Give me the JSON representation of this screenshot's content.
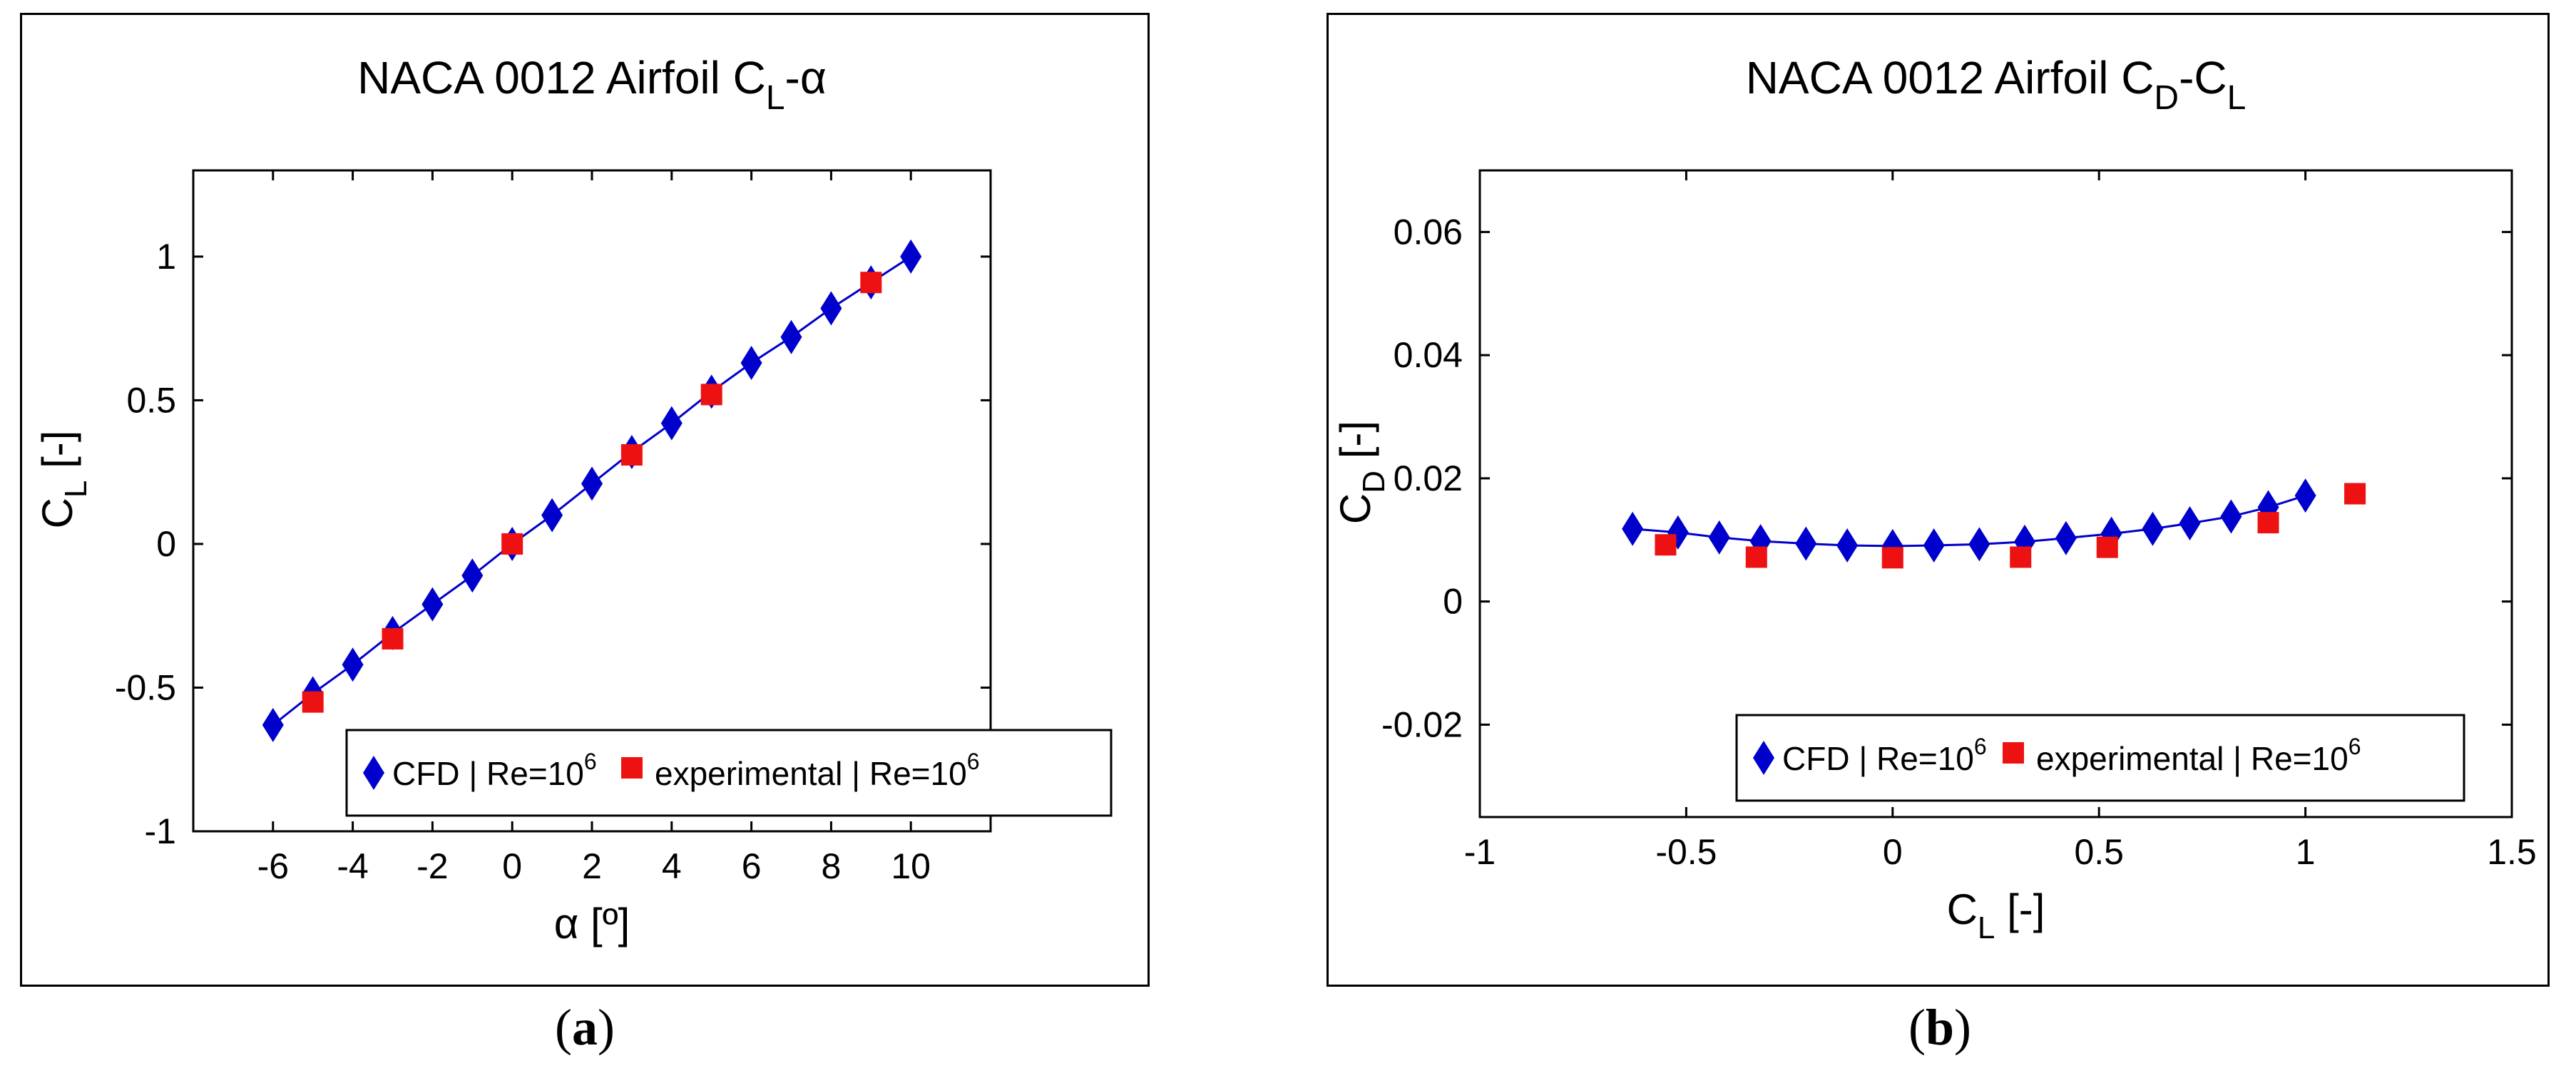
{
  "charts": [
    {
      "id": "a",
      "caption_letter": "a",
      "title_main": "NACA 0012 Airfoil C",
      "title_sub": "L",
      "title_tail": "-α",
      "xlabel_main": "α [º]",
      "ylabel_main": "C",
      "ylabel_sub": "L",
      "ylabel_tail": " [-]",
      "legend": {
        "cfd_text": "CFD | Re=10",
        "cfd_sup": "6",
        "exp_text": "experimental | Re=10",
        "exp_sup": "6"
      }
    },
    {
      "id": "b",
      "caption_letter": "b",
      "title_main": "NACA 0012 Airfoil C",
      "title_sub": "D",
      "title_mid": "-C",
      "title_sub2": "L",
      "xlabel_main": "C",
      "xlabel_sub": "L",
      "xlabel_tail": " [-]",
      "ylabel_main": "C",
      "ylabel_sub": "D",
      "ylabel_tail": " [-]",
      "legend": {
        "cfd_text": "CFD | Re=10",
        "cfd_sup": "6",
        "exp_text": "experimental | Re=10",
        "exp_sup": "6"
      }
    }
  ],
  "chart_data": [
    {
      "type": "line",
      "title": "NACA 0012 Airfoil CL-α",
      "xlabel": "α [º]",
      "ylabel": "CL [-]",
      "xlim": [
        -8,
        12
      ],
      "ylim": [
        -1,
        1.3
      ],
      "xticks": [
        -6,
        -4,
        -2,
        0,
        2,
        4,
        6,
        8,
        10
      ],
      "yticks": [
        -1,
        -0.5,
        0,
        0.5,
        1
      ],
      "xtick_labels": [
        "-6",
        "-4",
        "-2",
        "0",
        "2",
        "4",
        "6",
        "8",
        "10"
      ],
      "ytick_labels": [
        "-1",
        "-0.5",
        "0",
        "0.5",
        "1"
      ],
      "legend_position": "bottom-center",
      "series": [
        {
          "name": "CFD | Re=10^6",
          "marker": "diamond",
          "color": "#0000cc",
          "x": [
            -6,
            -5,
            -4,
            -3,
            -2,
            -1,
            0,
            1,
            2,
            3,
            4,
            5,
            6,
            7,
            8,
            9,
            10
          ],
          "y": [
            -0.63,
            -0.52,
            -0.42,
            -0.31,
            -0.21,
            -0.11,
            0.0,
            0.1,
            0.21,
            0.32,
            0.42,
            0.53,
            0.63,
            0.72,
            0.82,
            0.91,
            1.0
          ]
        },
        {
          "name": "experimental | Re=10^6",
          "marker": "square",
          "color": "#ee1111",
          "x": [
            -5,
            -3,
            0,
            3,
            5,
            9
          ],
          "y": [
            -0.55,
            -0.33,
            0.0,
            0.31,
            0.52,
            0.91
          ]
        }
      ]
    },
    {
      "type": "line",
      "title": "NACA 0012 Airfoil CD-CL",
      "xlabel": "CL [-]",
      "ylabel": "CD [-]",
      "xlim": [
        -1,
        1.5
      ],
      "ylim": [
        -0.035,
        0.07
      ],
      "xticks": [
        -1,
        -0.5,
        0,
        0.5,
        1,
        1.5
      ],
      "yticks": [
        -0.02,
        0,
        0.02,
        0.04,
        0.06
      ],
      "xtick_labels": [
        "-1",
        "-0.5",
        "0",
        "0.5",
        "1",
        "1.5"
      ],
      "ytick_labels": [
        "-0.02",
        "0",
        "0.02",
        "0.04",
        "0.06"
      ],
      "legend_position": "bottom-center",
      "series": [
        {
          "name": "CFD | Re=10^6",
          "marker": "diamond",
          "color": "#0000cc",
          "x": [
            -0.63,
            -0.52,
            -0.42,
            -0.32,
            -0.21,
            -0.11,
            0.0,
            0.1,
            0.21,
            0.32,
            0.42,
            0.53,
            0.63,
            0.72,
            0.82,
            0.91,
            1.0
          ],
          "y": [
            0.0118,
            0.0112,
            0.0104,
            0.0098,
            0.0094,
            0.0091,
            0.009,
            0.0091,
            0.0093,
            0.0097,
            0.0103,
            0.011,
            0.0118,
            0.0127,
            0.0138,
            0.0153,
            0.0172
          ]
        },
        {
          "name": "experimental | Re=10^6",
          "marker": "square",
          "color": "#ee1111",
          "x": [
            -0.55,
            -0.33,
            0.0,
            0.31,
            0.52,
            0.91,
            1.12
          ],
          "y": [
            0.0092,
            0.0072,
            0.0071,
            0.0072,
            0.0088,
            0.0128,
            0.0175
          ]
        }
      ]
    }
  ]
}
